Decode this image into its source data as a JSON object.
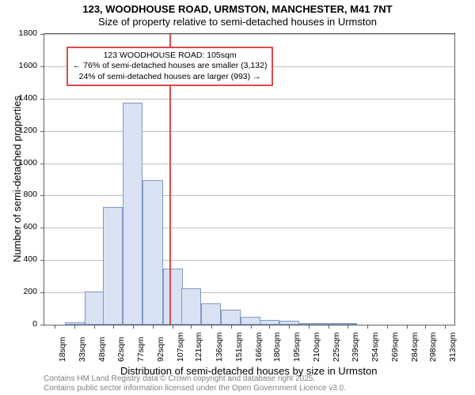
{
  "title": {
    "line1": "123, WOODHOUSE ROAD, URMSTON, MANCHESTER, M41 7NT",
    "line2": "Size of property relative to semi-detached houses in Urmston"
  },
  "chart": {
    "type": "histogram",
    "background_color": "#ffffff",
    "grid_color": "#c0c0c0",
    "axis_color": "#606060",
    "bar_fill": "#d8e2f2",
    "bar_stroke": "#7f98c6",
    "y_label": "Number of semi-detached properties",
    "x_label": "Distribution of semi-detached houses by size in Urmston",
    "label_fontsize": 13,
    "tick_fontsize": 10.5,
    "xlim": [
      10,
      320
    ],
    "ylim": [
      0,
      1800
    ],
    "ytick_step": 200,
    "yticks": [
      0,
      200,
      400,
      600,
      800,
      1000,
      1200,
      1400,
      1600,
      1800
    ],
    "categories": [
      "18sqm",
      "33sqm",
      "48sqm",
      "62sqm",
      "77sqm",
      "92sqm",
      "107sqm",
      "121sqm",
      "136sqm",
      "151sqm",
      "166sqm",
      "180sqm",
      "195sqm",
      "210sqm",
      "225sqm",
      "239sqm",
      "254sqm",
      "269sqm",
      "284sqm",
      "298sqm",
      "313sqm"
    ],
    "bin_centers": [
      18,
      33,
      48,
      62,
      77,
      92,
      107,
      121,
      136,
      151,
      166,
      180,
      195,
      210,
      225,
      239,
      254,
      269,
      284,
      298,
      313
    ],
    "bin_width": 15,
    "values": [
      0,
      15,
      205,
      730,
      1375,
      895,
      345,
      225,
      130,
      95,
      50,
      30,
      25,
      10,
      5,
      5,
      0,
      0,
      0,
      0,
      0
    ]
  },
  "marker": {
    "value_sqm": 105,
    "line_color": "#d94a4a",
    "line_width": 2
  },
  "annotation": {
    "line1": "123 WOODHOUSE ROAD: 105sqm",
    "line2": "← 76% of semi-detached houses are smaller (3,132)",
    "line3": "24% of semi-detached houses are larger (993) →",
    "border_color": "#d94a4a",
    "border_width": 2
  },
  "footer": {
    "line1": "Contains HM Land Registry data © Crown copyright and database right 2025.",
    "line2": "Contains public sector information licensed under the Open Government Licence v3.0."
  }
}
